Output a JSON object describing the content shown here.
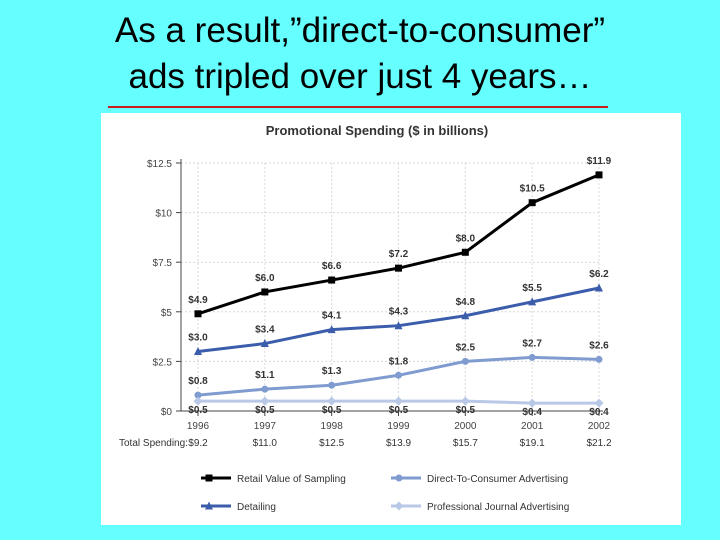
{
  "slide": {
    "title_line1": "As a result,”direct-to-consumer”",
    "title_line2": "ads tripled over just 4 years…"
  },
  "colors": {
    "background": "#66ffff",
    "title_rule": "#c81e1e",
    "panel": "#ffffff"
  },
  "chart_data": {
    "type": "line",
    "title": "Promotional Spending ($ in billions)",
    "x": [
      "1996",
      "1997",
      "1998",
      "1999",
      "2000",
      "2001",
      "2002"
    ],
    "ylim": [
      0,
      12.5
    ],
    "yticks": [
      "$0",
      "$2.5",
      "$5",
      "$7.5",
      "$10",
      "$12.5"
    ],
    "grid": true,
    "total_label": "Total Spending:",
    "totals": [
      "$9.2",
      "$11.0",
      "$12.5",
      "$13.9",
      "$15.7",
      "$19.1",
      "$21.2"
    ],
    "legend_position": "bottom",
    "series": [
      {
        "name": "Retail Value of Sampling",
        "color": "#000000",
        "marker": "square",
        "values": [
          4.9,
          6.0,
          6.6,
          7.2,
          8.0,
          10.5,
          11.9
        ],
        "labels": [
          "$4.9",
          "$6.0",
          "$6.6",
          "$7.2",
          "$8.0",
          "$10.5",
          "$11.9"
        ]
      },
      {
        "name": "Detailing",
        "color": "#3b5dab",
        "marker": "triangle",
        "values": [
          3.0,
          3.4,
          4.1,
          4.3,
          4.8,
          5.5,
          6.2
        ],
        "labels": [
          "$3.0",
          "$3.4",
          "$4.1",
          "$4.3",
          "$4.8",
          "$5.5",
          "$6.2"
        ]
      },
      {
        "name": "Direct-To-Consumer Advertising",
        "color": "#7f9bd0",
        "marker": "circle",
        "values": [
          0.8,
          1.1,
          1.3,
          1.8,
          2.5,
          2.7,
          2.6
        ],
        "labels": [
          "$0.8",
          "$1.1",
          "$1.3",
          "$1.8",
          "$2.5",
          "$2.7",
          "$2.6"
        ]
      },
      {
        "name": "Professional Journal Advertising",
        "color": "#b9c8e6",
        "marker": "diamond",
        "values": [
          0.5,
          0.5,
          0.5,
          0.5,
          0.5,
          0.4,
          0.4
        ],
        "labels": [
          "$0.5",
          "$0.5",
          "$0.5",
          "$0.5",
          "$0.5",
          "$0.4",
          "$0.4"
        ]
      }
    ]
  }
}
